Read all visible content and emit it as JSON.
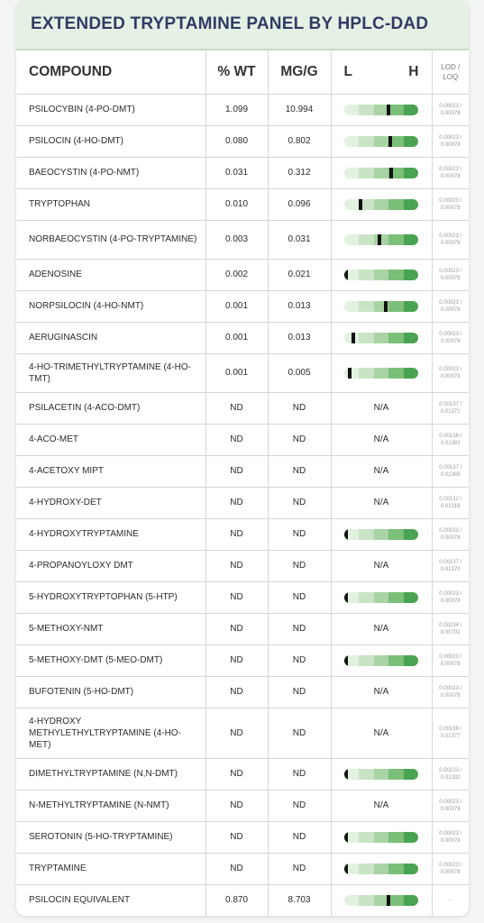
{
  "title": "EXTENDED TRYPTAMINE PANEL BY HPLC-DAD",
  "headers": {
    "compound": "COMPOUND",
    "pct_wt": "% WT",
    "mg_g": "MG/G",
    "low": "L",
    "high": "H",
    "lod_line1": "LOD /",
    "lod_line2": "LOQ"
  },
  "rows": [
    {
      "name": "PSILOCYBIN (4-PO-DMT)",
      "pct": "1.099",
      "mgg": "10.994",
      "level": 0.6,
      "lod1": "0.00023 /",
      "lod2": "0.00078"
    },
    {
      "name": "PSILOCIN (4-HO-DMT)",
      "pct": "0.080",
      "mgg": "0.802",
      "level": 0.63,
      "lod1": "0.00023 /",
      "lod2": "0.00078"
    },
    {
      "name": "BAEOCYSTIN (4-PO-NMT)",
      "pct": "0.031",
      "mgg": "0.312",
      "level": 0.64,
      "lod1": "0.00023 /",
      "lod2": "0.00078"
    },
    {
      "name": "TRYPTOPHAN",
      "pct": "0.010",
      "mgg": "0.096",
      "level": 0.21,
      "lod1": "0.00023 /",
      "lod2": "0.00078"
    },
    {
      "name": "NORBAEOCYSTIN (4-PO-TRYPTAMINE)",
      "pct": "0.003",
      "mgg": "0.031",
      "level": 0.48,
      "lod1": "0.00023 /",
      "lod2": "0.00078"
    },
    {
      "name": "ADENOSINE",
      "pct": "0.002",
      "mgg": "0.021",
      "level": 0.0,
      "lod1": "0.00023 /",
      "lod2": "0.00078"
    },
    {
      "name": "NORPSILOCIN (4-HO-NMT)",
      "pct": "0.001",
      "mgg": "0.013",
      "level": 0.57,
      "lod1": "0.00023 /",
      "lod2": "0.00078"
    },
    {
      "name": "AERUGINASCIN",
      "pct": "0.001",
      "mgg": "0.013",
      "level": 0.1,
      "lod1": "0.00023 /",
      "lod2": "0.00078"
    },
    {
      "name": "4-HO-TRIMETHYLTRYPTAMINE (4-HO-TMT)",
      "pct": "0.001",
      "mgg": "0.005",
      "level": 0.05,
      "lod1": "0.00023 /",
      "lod2": "0.00078"
    },
    {
      "name": "PSILACETIN (4-ACO-DMT)",
      "pct": "ND",
      "mgg": "ND",
      "range": "N/A",
      "lod1": "0.00137 /",
      "lod2": "0.01371"
    },
    {
      "name": "4-ACO-MET",
      "pct": "ND",
      "mgg": "ND",
      "range": "N/A",
      "lod1": "0.00138 /",
      "lod2": "0.01381"
    },
    {
      "name": "4-ACETOXY MIPT",
      "pct": "ND",
      "mgg": "ND",
      "range": "N/A",
      "lod1": "0.00137 /",
      "lod2": "0.01369"
    },
    {
      "name": "4-HYDROXY-DET",
      "pct": "ND",
      "mgg": "ND",
      "range": "N/A",
      "lod1": "0.00132 /",
      "lod2": "0.01316"
    },
    {
      "name": "4-HYDROXYTRYPTAMINE",
      "pct": "ND",
      "mgg": "ND",
      "level": 0.0,
      "lod1": "0.00023 /",
      "lod2": "0.00078"
    },
    {
      "name": "4-PROPANOYLOXY DMT",
      "pct": "ND",
      "mgg": "ND",
      "range": "N/A",
      "lod1": "0.00137 /",
      "lod2": "0.01370"
    },
    {
      "name": "5-HYDROXYTRYPTOPHAN (5-HTP)",
      "pct": "ND",
      "mgg": "ND",
      "level": 0.0,
      "lod1": "0.00023 /",
      "lod2": "0.00078"
    },
    {
      "name": "5-METHOXY-NMT",
      "pct": "ND",
      "mgg": "ND",
      "range": "N/A",
      "lod1": "0.00234 /",
      "lod2": "0.00701"
    },
    {
      "name": "5-METHOXY-DMT (5-MEO-DMT)",
      "pct": "ND",
      "mgg": "ND",
      "level": 0.0,
      "lod1": "0.00023 /",
      "lod2": "0.00078"
    },
    {
      "name": "BUFOTENIN (5-HO-DMT)",
      "pct": "ND",
      "mgg": "ND",
      "range": "N/A",
      "lod1": "0.00023 /",
      "lod2": "0.00078"
    },
    {
      "name": "4-HYDROXY METHYLETHYLTRYPTAMINE (4-HO-MET)",
      "pct": "ND",
      "mgg": "ND",
      "range": "N/A",
      "lod1": "0.00138 /",
      "lod2": "0.01377"
    },
    {
      "name": "DIMETHYLTRYPTAMINE (N,N-DMT)",
      "pct": "ND",
      "mgg": "ND",
      "level": 0.0,
      "lod1": "0.00133 /",
      "lod2": "0.01332"
    },
    {
      "name": "N-METHYLTRYPTAMINE (N-NMT)",
      "pct": "ND",
      "mgg": "ND",
      "range": "N/A",
      "lod1": "0.00023 /",
      "lod2": "0.00078"
    },
    {
      "name": "SEROTONIN (5-HO-TRYPTAMINE)",
      "pct": "ND",
      "mgg": "ND",
      "level": 0.0,
      "lod1": "0.00023 /",
      "lod2": "0.00078"
    },
    {
      "name": "TRYPTAMINE",
      "pct": "ND",
      "mgg": "ND",
      "level": 0.0,
      "lod1": "0.00023 /",
      "lod2": "0.00078"
    },
    {
      "name": "PSILOCIN EQUIVALENT",
      "pct": "0.870",
      "mgg": "8.703",
      "level": 0.6,
      "lod1": "--",
      "lod2": ""
    }
  ],
  "row_heights": "layout-only (kept in script)"
}
